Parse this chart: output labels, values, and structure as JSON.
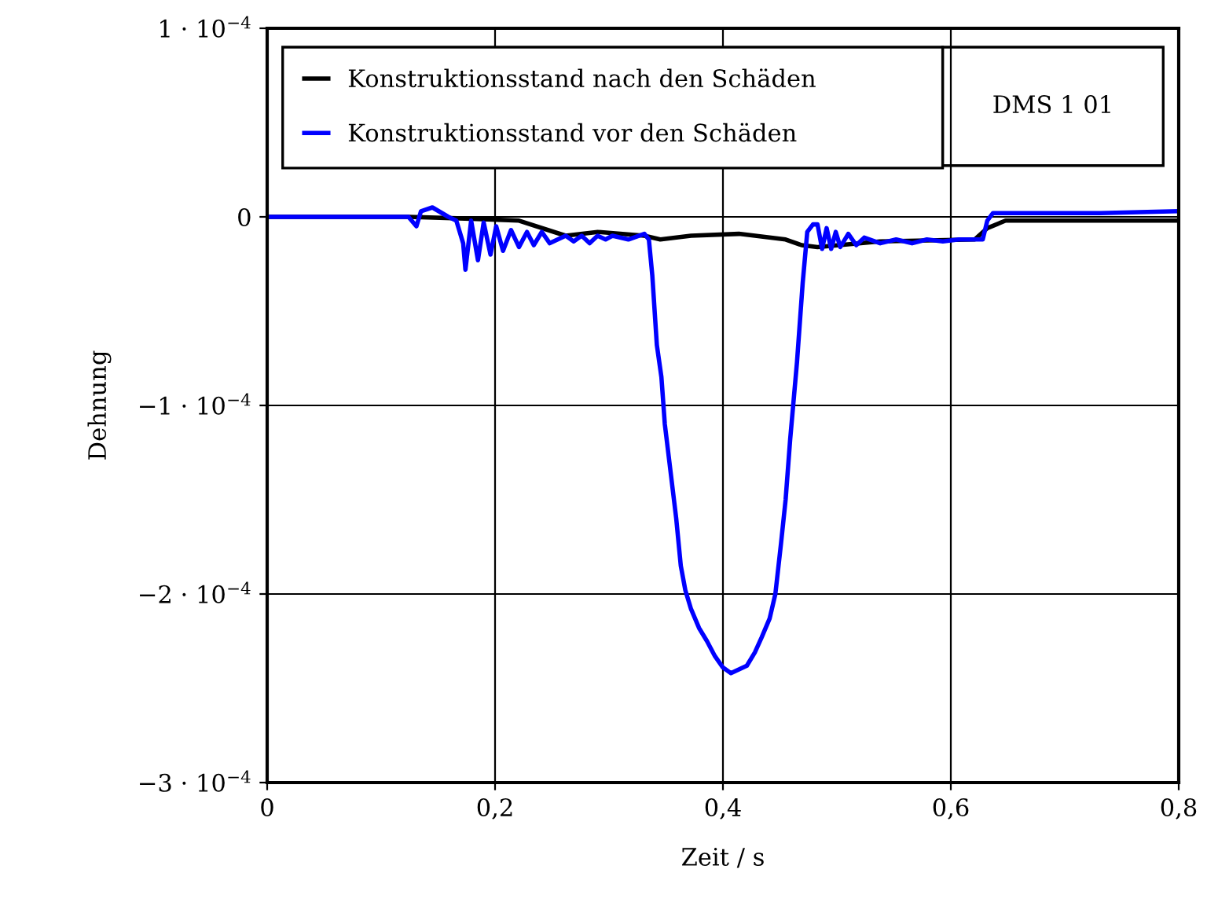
{
  "chart_data": {
    "type": "line",
    "xlabel": "Zeit / s",
    "ylabel": "Dehnung",
    "annotations": [
      "DMS 1 01"
    ],
    "xlim": [
      0,
      0.8
    ],
    "xticks": [
      {
        "value": 0,
        "label": "0"
      },
      {
        "value": 0.2,
        "label": "0,2"
      },
      {
        "value": 0.4,
        "label": "0,4"
      },
      {
        "value": 0.6,
        "label": "0,6"
      },
      {
        "value": 0.8,
        "label": "0,8"
      }
    ],
    "ylim": [
      -0.0003,
      0.0001
    ],
    "yticks": [
      {
        "value": -0.0003,
        "label": "−3 · 10$^{−4}$"
      },
      {
        "value": -0.0002,
        "label": "−2 · 10$^{−4}$"
      },
      {
        "value": -0.0001,
        "label": "−1 · 10$^{−4}$"
      },
      {
        "value": 0,
        "label": "0"
      },
      {
        "value": 0.0001,
        "label": "1 · 10$^{−4}$"
      }
    ],
    "grid": true,
    "legend": "top",
    "marker": "none",
    "line_style": "solid",
    "series": [
      {
        "name": "Konstruktionsstand nach den Schäden",
        "color": "#000000",
        "x": [
          0,
          0.124,
          0.179,
          0.221,
          0.262,
          0.29,
          0.331,
          0.345,
          0.372,
          0.414,
          0.455,
          0.469,
          0.483,
          0.538,
          0.621,
          0.632,
          0.648,
          0.662,
          0.731,
          0.8
        ],
        "values": [
          0,
          0,
          -1e-06,
          -2e-06,
          -1e-05,
          -8e-06,
          -1e-05,
          -1.2e-05,
          -1e-05,
          -9e-06,
          -1.2e-05,
          -1.5e-05,
          -1.6e-05,
          -1.3e-05,
          -1.2e-05,
          -6e-06,
          -2e-06,
          -2e-06,
          -2e-06,
          -2e-06
        ]
      },
      {
        "name": "Konstruktionsstand vor den Schäden",
        "color": "#0000ff",
        "x": [
          0,
          0.124,
          0.131,
          0.135,
          0.145,
          0.159,
          0.166,
          0.172,
          0.174,
          0.179,
          0.185,
          0.19,
          0.196,
          0.201,
          0.207,
          0.214,
          0.221,
          0.228,
          0.234,
          0.241,
          0.248,
          0.262,
          0.269,
          0.276,
          0.283,
          0.29,
          0.297,
          0.303,
          0.317,
          0.331,
          0.335,
          0.338,
          0.342,
          0.346,
          0.349,
          0.354,
          0.359,
          0.363,
          0.367,
          0.372,
          0.379,
          0.386,
          0.393,
          0.4,
          0.407,
          0.414,
          0.421,
          0.428,
          0.434,
          0.441,
          0.446,
          0.451,
          0.455,
          0.459,
          0.465,
          0.47,
          0.474,
          0.479,
          0.483,
          0.487,
          0.491,
          0.495,
          0.499,
          0.503,
          0.51,
          0.517,
          0.524,
          0.538,
          0.552,
          0.566,
          0.579,
          0.593,
          0.607,
          0.621,
          0.628,
          0.632,
          0.637,
          0.648,
          0.662,
          0.731,
          0.8
        ],
        "values": [
          0,
          0,
          -5e-06,
          3e-06,
          5e-06,
          0,
          -2e-06,
          -1.4e-05,
          -2.8e-05,
          -2e-06,
          -2.3e-05,
          -3e-06,
          -2e-05,
          -5e-06,
          -1.8e-05,
          -7e-06,
          -1.6e-05,
          -8e-06,
          -1.5e-05,
          -8e-06,
          -1.4e-05,
          -1e-05,
          -1.3e-05,
          -1e-05,
          -1.4e-05,
          -1e-05,
          -1.2e-05,
          -1e-05,
          -1.2e-05,
          -9e-06,
          -1.2e-05,
          -3.1e-05,
          -6.8e-05,
          -8.5e-05,
          -0.00011,
          -0.000135,
          -0.00016,
          -0.000185,
          -0.000198,
          -0.000208,
          -0.000218,
          -0.000225,
          -0.000233,
          -0.000239,
          -0.000242,
          -0.00024,
          -0.000238,
          -0.000231,
          -0.000223,
          -0.000213,
          -0.0002,
          -0.000173,
          -0.00015,
          -0.000118,
          -7.7e-05,
          -3.5e-05,
          -8e-06,
          -4e-06,
          -4e-06,
          -1.7e-05,
          -6e-06,
          -1.7e-05,
          -8e-06,
          -1.6e-05,
          -9e-06,
          -1.5e-05,
          -1.1e-05,
          -1.4e-05,
          -1.2e-05,
          -1.4e-05,
          -1.2e-05,
          -1.3e-05,
          -1.2e-05,
          -1.2e-05,
          -1.2e-05,
          -2e-06,
          2e-06,
          2e-06,
          2e-06,
          2e-06,
          3e-06
        ]
      }
    ]
  }
}
